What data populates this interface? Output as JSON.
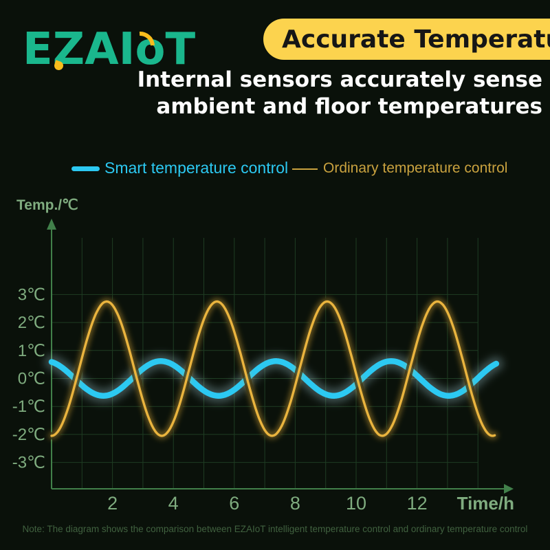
{
  "brand": {
    "logo_prefix": "EZAI",
    "logo_o": "o",
    "logo_suffix": "T",
    "logo_color": "#1ab78d",
    "accent_yellow": "#f8bc1c"
  },
  "header": {
    "banner_label": "Accurate Temperature",
    "banner_bg": "#fcd34e",
    "banner_text_color": "#161616",
    "subtitle_line1": "Internal sensors accurately sense",
    "subtitle_line2": "ambient and floor temperatures"
  },
  "legend": [
    {
      "label": "Smart temperature control",
      "color": "#2cc9f2",
      "swatch": "thick-line"
    },
    {
      "label": "Ordinary temperature control",
      "color": "#c9a23f",
      "swatch": "thin-line"
    }
  ],
  "chart_data": {
    "type": "line",
    "title": "",
    "ylabel": "Temp./℃",
    "xlabel": "Time/h",
    "grid": true,
    "legend_position": "top",
    "x_axis_range_h": [
      0,
      15
    ],
    "x_grid_step_h": 1,
    "x_ticks": [
      2,
      4,
      6,
      8,
      10,
      12
    ],
    "y_tick_labels": [
      "3℃",
      "2℃",
      "1℃",
      "0℃",
      "-1℃",
      "-2℃",
      "-3℃"
    ],
    "y_tick_values": [
      3,
      2,
      1,
      0,
      -1,
      -2,
      -3
    ],
    "series": [
      {
        "name": "Smart temperature control",
        "color": "#2cc9f2",
        "halo_color": "rgba(190,235,250,0.30)",
        "line_width": 8.5,
        "t_start": 0,
        "t_end": 14.6,
        "wave": {
          "center": 0,
          "amplitude": 0.62,
          "period_h": 3.78,
          "trough_at_h": 1.7
        },
        "peaks_h": [
          3.6,
          7.3,
          11.0
        ],
        "troughs_h": [
          1.7,
          5.4,
          9.0,
          13.1
        ],
        "max_c": 0.6,
        "min_c": -0.6,
        "value_at_0h_c": 0.5
      },
      {
        "name": "Ordinary temperature control",
        "color": "#eab43e",
        "halo_color": "rgba(232,179,60,0.45)",
        "line_width": 3.4,
        "t_start": 0,
        "t_end": 14.55,
        "wave": {
          "center": 0.35,
          "amplitude": 2.4,
          "period_h": 3.62,
          "trough_at_h": 0
        },
        "peaks_h": [
          1.8,
          5.4,
          9.0,
          12.7
        ],
        "troughs_h": [
          0,
          3.6,
          7.2,
          10.8,
          14.4
        ],
        "max_c": 2.75,
        "min_c": -2.05,
        "value_at_0h_c": -2.05
      }
    ]
  },
  "footnote": "Note: The diagram shows the comparison between EZAIoT intelligent temperature control and ordinary temperature control"
}
